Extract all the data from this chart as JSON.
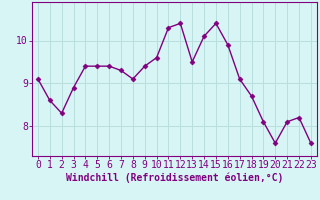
{
  "x": [
    0,
    1,
    2,
    3,
    4,
    5,
    6,
    7,
    8,
    9,
    10,
    11,
    12,
    13,
    14,
    15,
    16,
    17,
    18,
    19,
    20,
    21,
    22,
    23
  ],
  "y": [
    9.1,
    8.6,
    8.3,
    8.9,
    9.4,
    9.4,
    9.4,
    9.3,
    9.1,
    9.4,
    9.6,
    10.3,
    10.4,
    9.5,
    10.1,
    10.4,
    9.9,
    9.1,
    8.7,
    8.1,
    7.6,
    8.1,
    8.2,
    7.6
  ],
  "line_color": "#800080",
  "marker": "D",
  "markersize": 2.5,
  "linewidth": 1.0,
  "background_color": "#d8f5f5",
  "grid_color": "#b8dede",
  "xlabel": "Windchill (Refroidissement éolien,°C)",
  "xlabel_fontsize": 7,
  "tick_fontsize": 7,
  "ylim": [
    7.3,
    10.9
  ],
  "xlim": [
    -0.5,
    23.5
  ],
  "yticks": [
    8,
    9,
    10
  ],
  "xticks": [
    0,
    1,
    2,
    3,
    4,
    5,
    6,
    7,
    8,
    9,
    10,
    11,
    12,
    13,
    14,
    15,
    16,
    17,
    18,
    19,
    20,
    21,
    22,
    23
  ]
}
